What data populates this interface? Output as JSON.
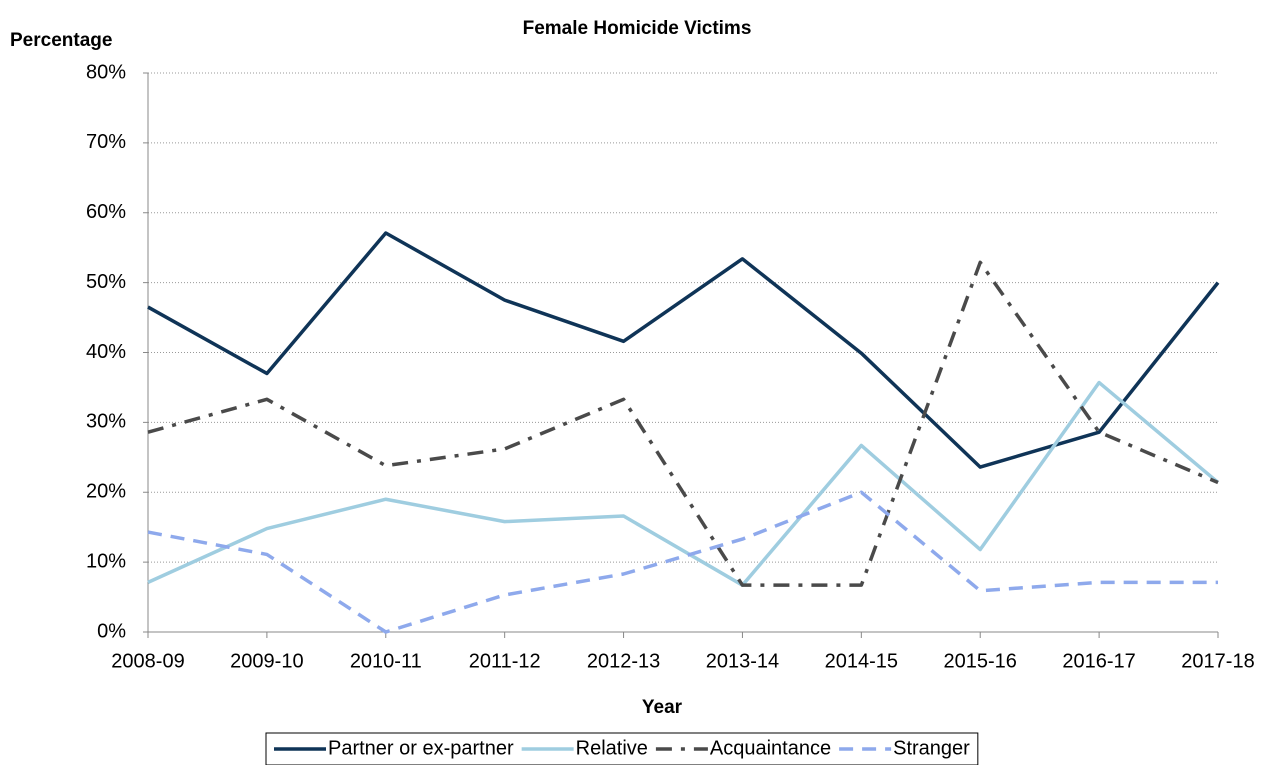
{
  "chart_data": {
    "type": "line",
    "title": "Female Homicide Victims",
    "y_label": "Percentage",
    "x_label": "Year",
    "categories": [
      "2008-09",
      "2009-10",
      "2010-11",
      "2011-12",
      "2012-13",
      "2013-14",
      "2014-15",
      "2015-16",
      "2016-17",
      "2017-18"
    ],
    "series": [
      {
        "name": "Partner or ex-partner",
        "color": "#0f3457",
        "linestyle": "solid",
        "values": [
          46.5,
          37.0,
          57.1,
          47.5,
          41.6,
          53.4,
          39.9,
          23.6,
          28.6,
          50.0
        ]
      },
      {
        "name": "Relative",
        "color": "#9fcde0",
        "linestyle": "solid",
        "values": [
          7.1,
          14.8,
          19.0,
          15.8,
          16.6,
          6.7,
          26.7,
          11.8,
          35.7,
          21.4
        ]
      },
      {
        "name": "Acquaintance",
        "color": "#4a4a4a",
        "linestyle": "dashdot",
        "values": [
          28.6,
          33.3,
          23.8,
          26.2,
          33.3,
          6.7,
          6.7,
          52.9,
          28.6,
          21.4
        ]
      },
      {
        "name": "Stranger",
        "color": "#8ea9ec",
        "linestyle": "dashed",
        "values": [
          14.3,
          11.1,
          0,
          5.3,
          8.3,
          13.3,
          20.0,
          5.9,
          7.1,
          7.1
        ]
      }
    ],
    "ylim": [
      0,
      80
    ],
    "yticks": [
      {
        "value": 0,
        "label": "0%"
      },
      {
        "value": 10,
        "label": "10%"
      },
      {
        "value": 20,
        "label": "20%"
      },
      {
        "value": 30,
        "label": "30%"
      },
      {
        "value": 40,
        "label": "40%"
      },
      {
        "value": 50,
        "label": "50%"
      },
      {
        "value": 60,
        "label": "60%"
      },
      {
        "value": 70,
        "label": "70%"
      },
      {
        "value": 80,
        "label": "80%"
      }
    ],
    "grid": true,
    "legend": "bottom"
  }
}
